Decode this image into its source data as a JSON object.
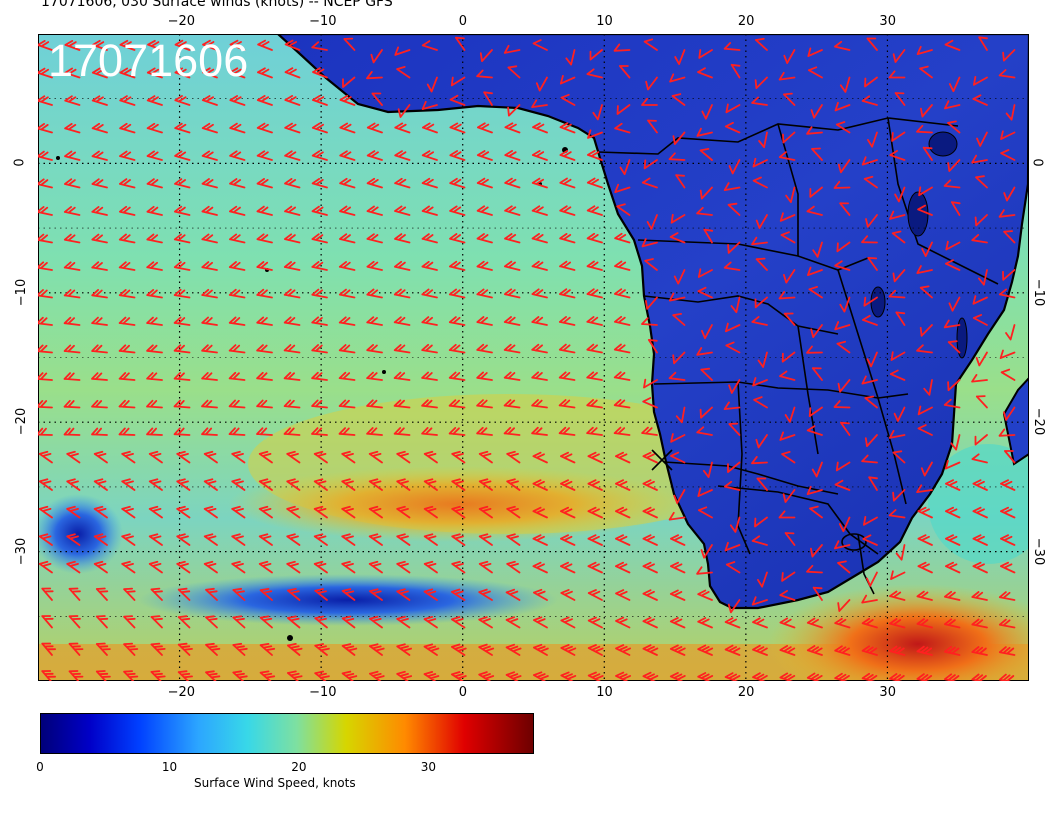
{
  "title": "17071606, 030 Surface winds (knots) -- NCEP GFS",
  "stamp": "17071606",
  "axes": {
    "lon_ticks": [
      "−20",
      "−10",
      "0",
      "10",
      "20",
      "30"
    ],
    "lon_values": [
      -20,
      -10,
      0,
      10,
      20,
      30
    ],
    "lat_ticks": [
      "0",
      "−10",
      "−20",
      "−30"
    ],
    "lat_values": [
      0,
      -10,
      -20,
      -30
    ],
    "lon_range": [
      -30,
      40
    ],
    "lat_range": [
      -40,
      10
    ]
  },
  "colorbar": {
    "ticks": [
      "0",
      "10",
      "20",
      "30"
    ],
    "tick_values": [
      0,
      10,
      20,
      30
    ],
    "range": [
      0,
      38
    ],
    "label": "Surface Wind Speed, knots",
    "colors": [
      "#00007a",
      "#0000e0",
      "#2a7cff",
      "#38d8e8",
      "#7ee0a0",
      "#d6d600",
      "#ff8a00",
      "#e00000",
      "#6e0000"
    ]
  },
  "colors": {
    "barb": "#ff2020",
    "coast": "#000000",
    "ocean_calm": "#3d6bd8",
    "ocean_mid": "#7fdcb8",
    "ocean_high": "#e2c23a",
    "land": "#1a2fb5"
  }
}
